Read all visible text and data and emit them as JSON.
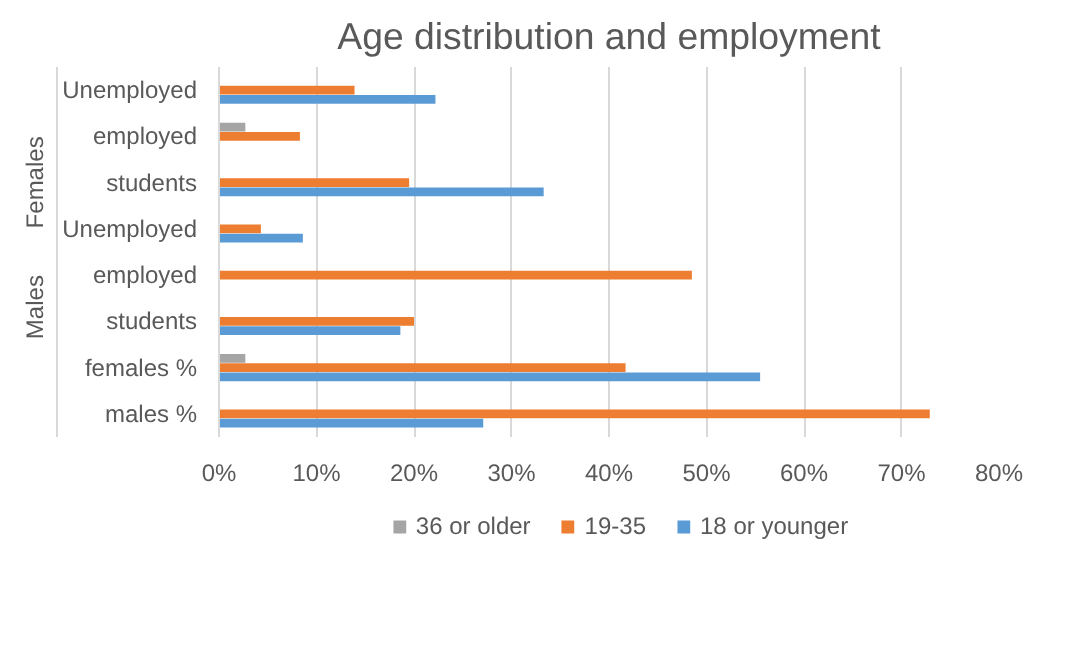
{
  "chart_data": {
    "type": "bar",
    "orientation": "horizontal",
    "title": "Age distribution and employment",
    "categories": [
      "Unemployed",
      "employed",
      "students",
      "Unemployed",
      "employed",
      "students",
      "females %",
      "males %"
    ],
    "series": [
      {
        "name": "36 or older",
        "color": "#a5a5a5",
        "values": [
          null,
          2.7,
          null,
          null,
          null,
          null,
          2.7,
          null
        ]
      },
      {
        "name": "19-35",
        "color": "#ed7d31",
        "values": [
          13.9,
          8.3,
          19.5,
          4.3,
          48.5,
          20.0,
          41.7,
          72.9
        ]
      },
      {
        "name": "18 or younger",
        "color": "#5b9bd5",
        "values": [
          22.2,
          null,
          33.3,
          8.6,
          null,
          18.6,
          55.5,
          27.1
        ]
      }
    ],
    "xlim": [
      0,
      80
    ],
    "xticks": [
      {
        "value": 0,
        "label": "0%"
      },
      {
        "value": 10,
        "label": "10%"
      },
      {
        "value": 20,
        "label": "20%"
      },
      {
        "value": 30,
        "label": "30%"
      },
      {
        "value": 40,
        "label": "40%"
      },
      {
        "value": 50,
        "label": "50%"
      },
      {
        "value": 60,
        "label": "60%"
      },
      {
        "value": 70,
        "label": "70%"
      },
      {
        "value": 80,
        "label": "80%"
      }
    ],
    "annotations": [
      "Females",
      "Males"
    ],
    "grid": "x",
    "legend": "bottom"
  }
}
